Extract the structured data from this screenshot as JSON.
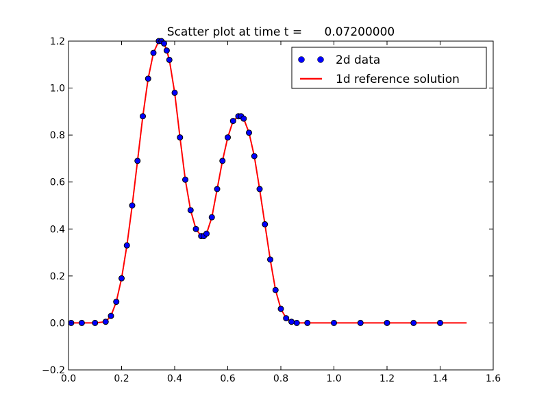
{
  "chart_data": {
    "type": "scatter",
    "title": "Scatter plot at time t =      0.07200000",
    "xlabel": "",
    "ylabel": "",
    "xlim": [
      0.0,
      1.6
    ],
    "ylim": [
      -0.2,
      1.2
    ],
    "x_ticks": [
      "0.0",
      "0.2",
      "0.4",
      "0.6",
      "0.8",
      "1.0",
      "1.2",
      "1.4",
      "1.6"
    ],
    "y_ticks": [
      "−0.2",
      "0.0",
      "0.2",
      "0.4",
      "0.6",
      "0.8",
      "1.0",
      "1.2"
    ],
    "grid": false,
    "legend_position": "top-right",
    "series": [
      {
        "name": "2d data",
        "kind": "scatter",
        "color": "#0000ff",
        "edge_color": "#000000",
        "x": [
          0.01,
          0.05,
          0.1,
          0.14,
          0.16,
          0.18,
          0.2,
          0.22,
          0.24,
          0.26,
          0.28,
          0.3,
          0.32,
          0.34,
          0.35,
          0.36,
          0.37,
          0.38,
          0.4,
          0.42,
          0.44,
          0.46,
          0.48,
          0.5,
          0.51,
          0.52,
          0.54,
          0.56,
          0.58,
          0.6,
          0.62,
          0.64,
          0.65,
          0.66,
          0.68,
          0.7,
          0.72,
          0.74,
          0.76,
          0.78,
          0.8,
          0.82,
          0.84,
          0.86,
          0.9,
          1.0,
          1.1,
          1.2,
          1.3,
          1.4
        ],
        "y": [
          0.0,
          0.0,
          0.0,
          0.005,
          0.03,
          0.09,
          0.19,
          0.33,
          0.5,
          0.69,
          0.88,
          1.04,
          1.15,
          1.2,
          1.2,
          1.19,
          1.16,
          1.12,
          0.98,
          0.79,
          0.61,
          0.48,
          0.4,
          0.37,
          0.37,
          0.38,
          0.45,
          0.57,
          0.69,
          0.79,
          0.86,
          0.88,
          0.88,
          0.87,
          0.81,
          0.71,
          0.57,
          0.42,
          0.27,
          0.14,
          0.06,
          0.02,
          0.005,
          0.0,
          0.0,
          0.0,
          0.0,
          0.0,
          0.0,
          0.0
        ]
      },
      {
        "name": "1d reference solution",
        "kind": "line",
        "color": "#ff0000",
        "x": [
          0.0,
          0.05,
          0.1,
          0.14,
          0.16,
          0.18,
          0.2,
          0.22,
          0.24,
          0.26,
          0.28,
          0.3,
          0.32,
          0.34,
          0.35,
          0.36,
          0.37,
          0.38,
          0.4,
          0.42,
          0.44,
          0.46,
          0.48,
          0.5,
          0.51,
          0.52,
          0.54,
          0.56,
          0.58,
          0.6,
          0.62,
          0.64,
          0.65,
          0.66,
          0.68,
          0.7,
          0.72,
          0.74,
          0.76,
          0.78,
          0.8,
          0.82,
          0.84,
          0.86,
          0.9,
          1.0,
          1.1,
          1.2,
          1.3,
          1.4,
          1.5
        ],
        "y": [
          0.0,
          0.0,
          0.0,
          0.005,
          0.03,
          0.09,
          0.19,
          0.33,
          0.5,
          0.69,
          0.88,
          1.04,
          1.15,
          1.2,
          1.2,
          1.19,
          1.16,
          1.12,
          0.98,
          0.79,
          0.61,
          0.48,
          0.4,
          0.37,
          0.37,
          0.38,
          0.45,
          0.57,
          0.69,
          0.79,
          0.86,
          0.88,
          0.88,
          0.87,
          0.81,
          0.71,
          0.57,
          0.42,
          0.27,
          0.14,
          0.06,
          0.02,
          0.005,
          0.0,
          0.0,
          0.0,
          0.0,
          0.0,
          0.0,
          0.0,
          0.0
        ]
      }
    ]
  }
}
